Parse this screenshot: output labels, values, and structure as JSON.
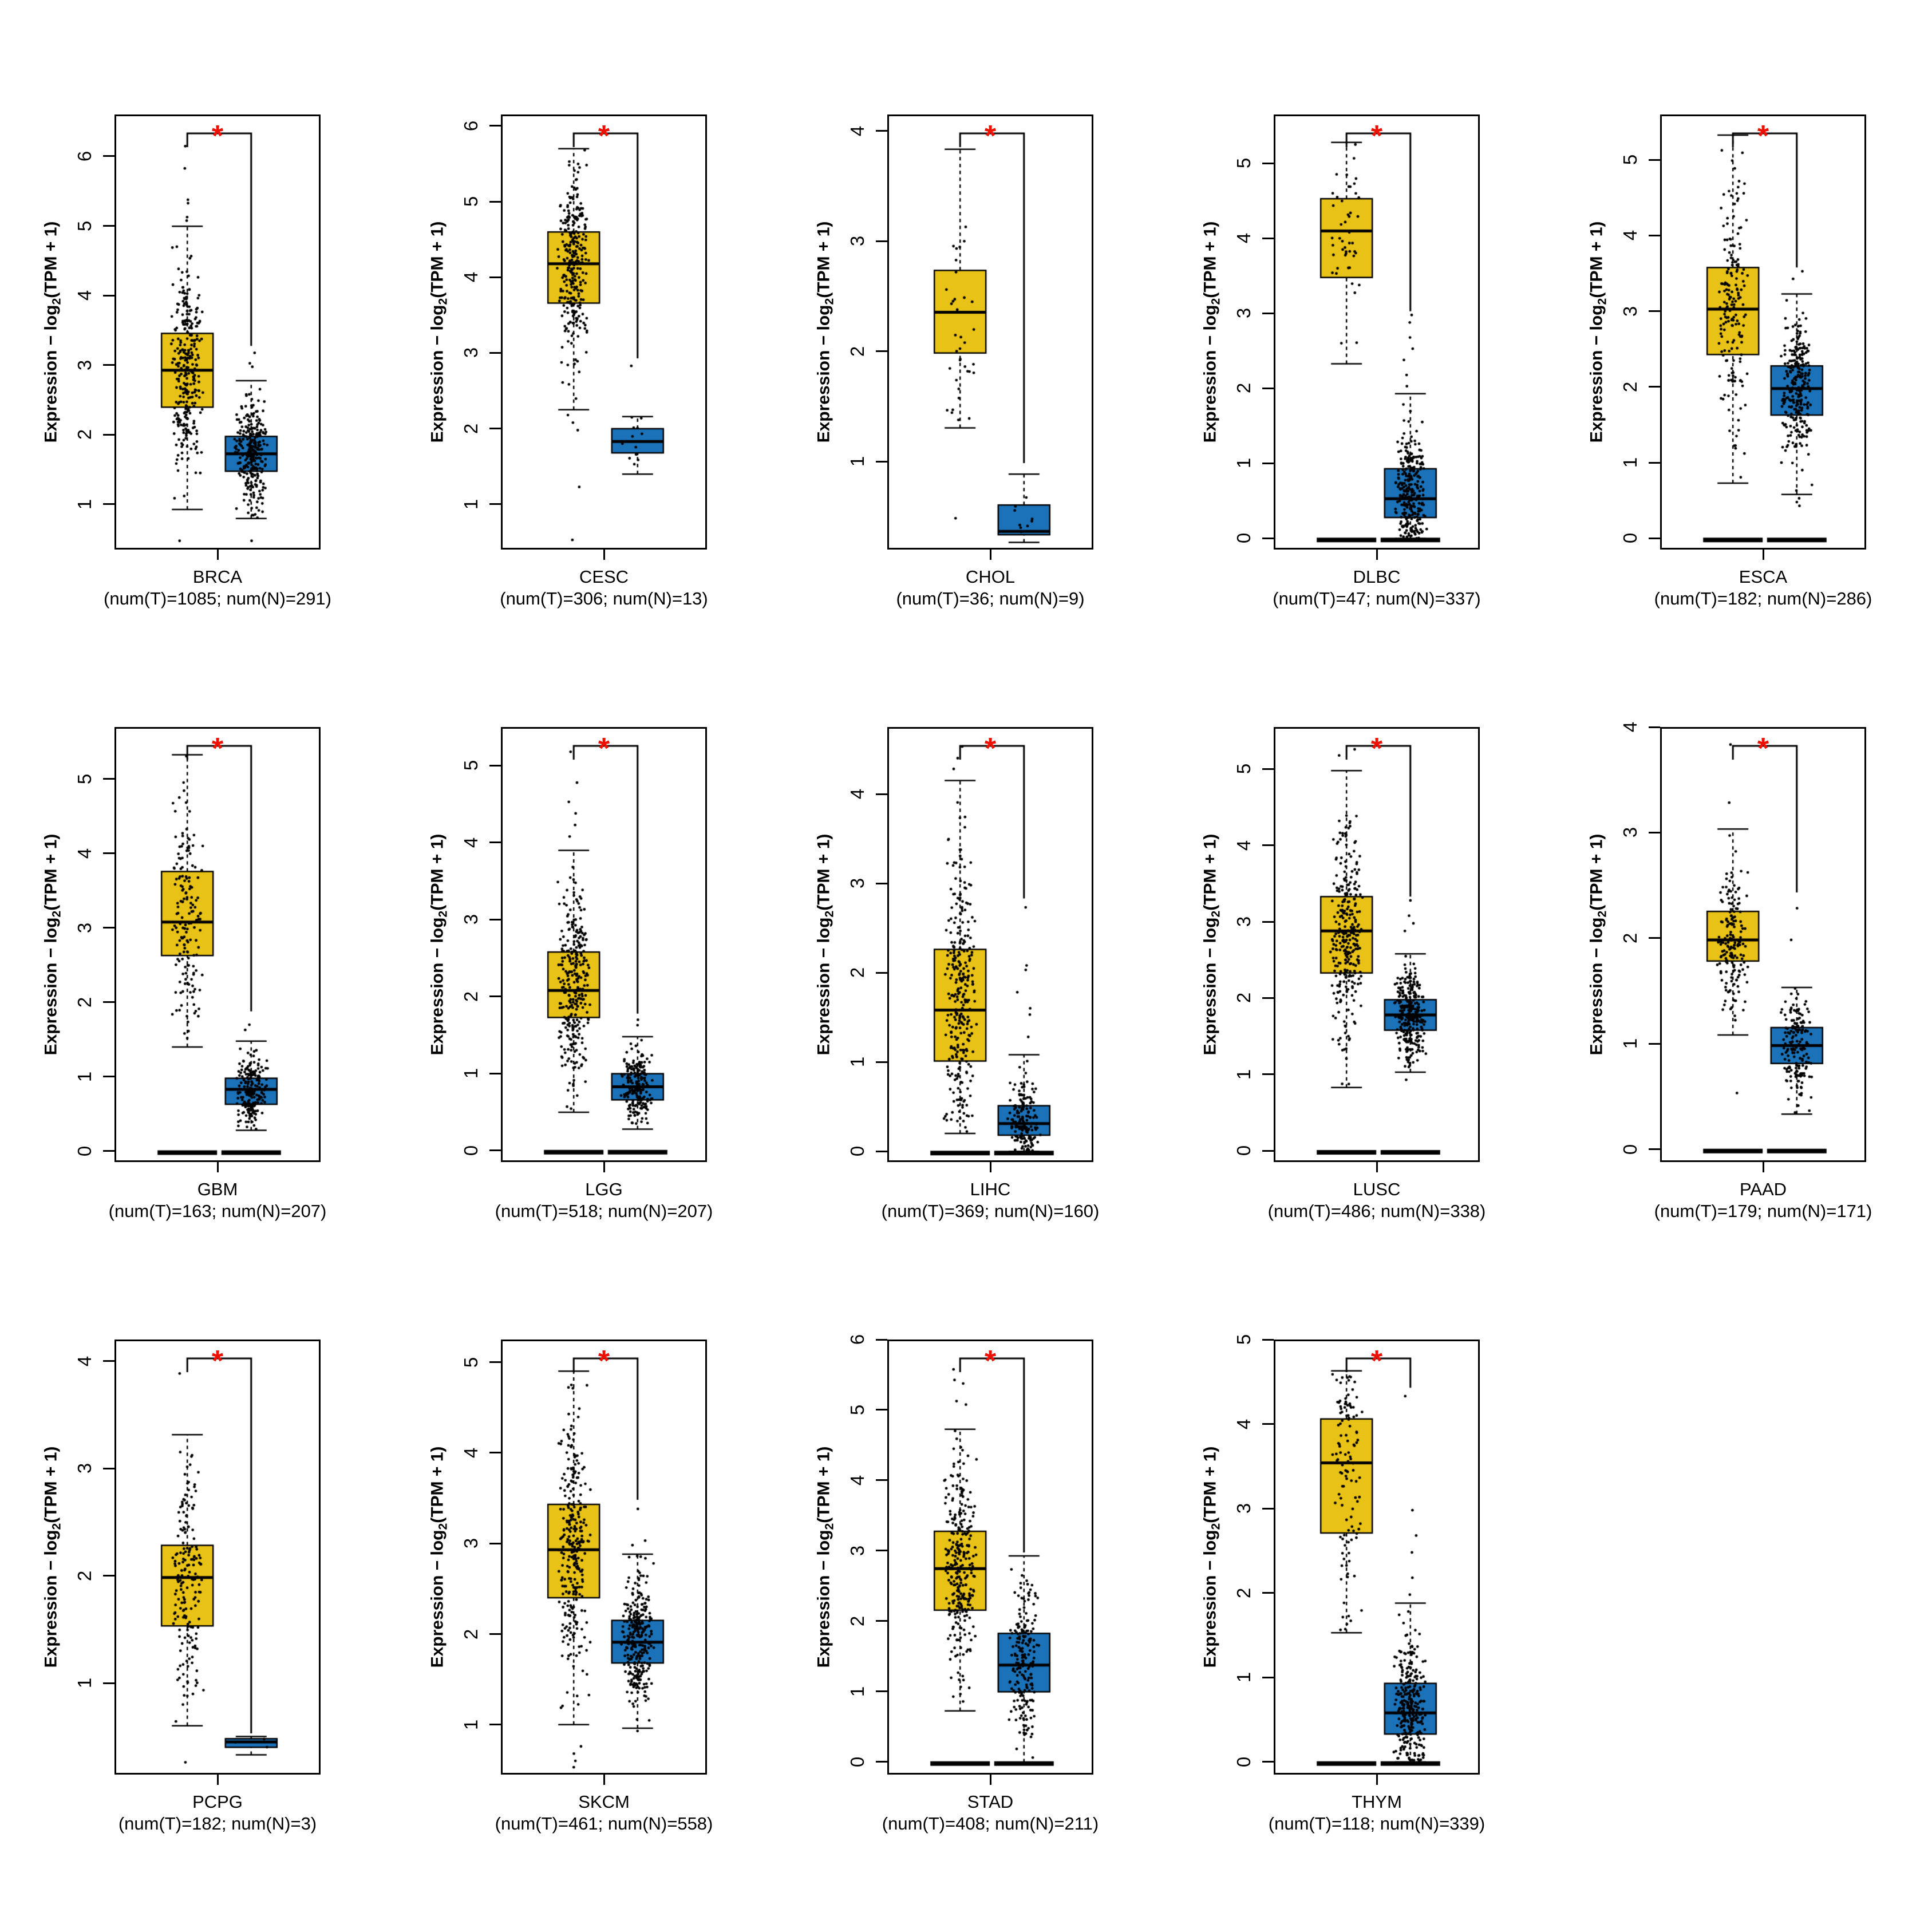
{
  "figure": {
    "y_axis_label": {
      "prefix": "Expression − log",
      "sub": "2",
      "suffix": "(TPM + 1)"
    },
    "significance_marker": "*",
    "colors": {
      "tumor_box": "#E9C217",
      "normal_box": "#1B72B8",
      "marker": "#EE1000",
      "points": "#000000"
    },
    "legend_note": "left box = tumor (gold), right box = normal (blue)"
  },
  "chart_data": [
    {
      "type": "box",
      "cancer": "BRCA",
      "caption": "(num(T)=1085; num(N)=291)",
      "num_t": 1085,
      "num_n": 291,
      "yticks": [
        1,
        2,
        3,
        4,
        5,
        6
      ],
      "ylim": [
        0.35,
        6.6
      ],
      "bracket_drop_to": 3.3,
      "tumor": {
        "q1": 2.42,
        "median": 2.95,
        "q3": 3.48,
        "whisker_low": 0.95,
        "whisker_high": 5.02,
        "outliers": [
          5.1,
          5.15,
          5.35,
          5.4,
          5.85,
          6.17,
          0.5
        ],
        "zero_line": false,
        "n": 1085
      },
      "normal": {
        "q1": 1.5,
        "median": 1.75,
        "q3": 2.0,
        "whisker_low": 0.82,
        "whisker_high": 2.8,
        "outliers": [
          3.0,
          3.05,
          3.2,
          0.5
        ],
        "zero_line": false,
        "n": 291
      }
    },
    {
      "type": "box",
      "cancer": "CESC",
      "caption": "(num(T)=306; num(N)=13)",
      "num_t": 306,
      "num_n": 13,
      "yticks": [
        1,
        2,
        3,
        4,
        5,
        6
      ],
      "ylim": [
        0.4,
        6.15
      ],
      "bracket_drop_to": 2.95,
      "tumor": {
        "q1": 3.68,
        "median": 4.2,
        "q3": 4.62,
        "whisker_low": 2.27,
        "whisker_high": 5.72,
        "outliers": [
          2.2,
          2.1,
          2.0,
          1.25,
          0.55
        ],
        "zero_line": false,
        "n": 306
      },
      "normal": {
        "q1": 1.7,
        "median": 1.85,
        "q3": 2.02,
        "whisker_low": 1.42,
        "whisker_high": 2.18,
        "outliers": [
          2.85
        ],
        "zero_line": false,
        "n": 13
      }
    },
    {
      "type": "box",
      "cancer": "CHOL",
      "caption": "(num(T)=36; num(N)=9)",
      "num_t": 36,
      "num_n": 9,
      "yticks": [
        1,
        2,
        3,
        4
      ],
      "ylim": [
        0.2,
        4.15
      ],
      "bracket_drop_to": 1.0,
      "tumor": {
        "q1": 2.0,
        "median": 2.37,
        "q3": 2.75,
        "whisker_low": 1.32,
        "whisker_high": 3.85,
        "outliers": [
          0.5
        ],
        "zero_line": false,
        "n": 36
      },
      "normal": {
        "q1": 0.35,
        "median": 0.38,
        "q3": 0.62,
        "whisker_low": 0.28,
        "whisker_high": 0.9,
        "outliers": [],
        "zero_line": false,
        "n": 9
      }
    },
    {
      "type": "box",
      "cancer": "DLBC",
      "caption": "(num(T)=47; num(N)=337)",
      "num_t": 47,
      "num_n": 337,
      "yticks": [
        0,
        1,
        2,
        3,
        4,
        5
      ],
      "ylim": [
        -0.15,
        5.65
      ],
      "bracket_drop_to": 3.05,
      "tumor": {
        "q1": 3.5,
        "median": 4.12,
        "q3": 4.55,
        "whisker_low": 2.35,
        "whisker_high": 5.3,
        "outliers": [],
        "zero_line": true,
        "n": 47
      },
      "normal": {
        "q1": 0.3,
        "median": 0.55,
        "q3": 0.95,
        "whisker_low": 0.02,
        "whisker_high": 1.95,
        "outliers": [
          2.05,
          2.2,
          2.4,
          2.55,
          2.7,
          2.9,
          3.0
        ],
        "zero_line": true,
        "n": 337
      }
    },
    {
      "type": "box",
      "cancer": "ESCA",
      "caption": "(num(T)=182; num(N)=286)",
      "num_t": 182,
      "num_n": 286,
      "yticks": [
        0,
        1,
        2,
        3,
        4,
        5
      ],
      "ylim": [
        -0.15,
        5.6
      ],
      "bracket_drop_to": 3.6,
      "tumor": {
        "q1": 2.45,
        "median": 3.05,
        "q3": 3.6,
        "whisker_low": 0.75,
        "whisker_high": 5.35,
        "outliers": [],
        "zero_line": true,
        "n": 182
      },
      "normal": {
        "q1": 1.65,
        "median": 2.0,
        "q3": 2.3,
        "whisker_low": 0.6,
        "whisker_high": 3.25,
        "outliers": [
          0.45,
          0.5,
          0.55,
          3.45,
          3.55
        ],
        "zero_line": true,
        "n": 286
      }
    },
    {
      "type": "box",
      "cancer": "GBM",
      "caption": "(num(T)=163; num(N)=207)",
      "num_t": 163,
      "num_n": 207,
      "yticks": [
        0,
        1,
        2,
        3,
        4,
        5
      ],
      "ylim": [
        -0.15,
        5.7
      ],
      "bracket_drop_to": 1.9,
      "tumor": {
        "q1": 2.65,
        "median": 3.1,
        "q3": 3.78,
        "whisker_low": 1.42,
        "whisker_high": 5.35,
        "outliers": [],
        "zero_line": true,
        "n": 163
      },
      "normal": {
        "q1": 0.65,
        "median": 0.85,
        "q3": 1.0,
        "whisker_low": 0.3,
        "whisker_high": 1.5,
        "outliers": [
          1.65,
          1.72
        ],
        "zero_line": true,
        "n": 207
      }
    },
    {
      "type": "box",
      "cancer": "LGG",
      "caption": "(num(T)=518; num(N)=207)",
      "num_t": 518,
      "num_n": 207,
      "yticks": [
        0,
        1,
        2,
        3,
        4,
        5
      ],
      "ylim": [
        -0.15,
        5.5
      ],
      "bracket_drop_to": 1.8,
      "tumor": {
        "q1": 1.75,
        "median": 2.1,
        "q3": 2.6,
        "whisker_low": 0.52,
        "whisker_high": 3.92,
        "outliers": [
          4.1,
          4.25,
          4.4,
          4.55,
          4.8,
          5.2
        ],
        "zero_line": true,
        "n": 518
      },
      "normal": {
        "q1": 0.68,
        "median": 0.85,
        "q3": 1.02,
        "whisker_low": 0.3,
        "whisker_high": 1.5,
        "outliers": [
          1.65,
          1.72
        ],
        "zero_line": true,
        "n": 207
      }
    },
    {
      "type": "box",
      "cancer": "LIHC",
      "caption": "(num(T)=369; num(N)=160)",
      "num_t": 369,
      "num_n": 160,
      "yticks": [
        0,
        1,
        2,
        3,
        4
      ],
      "ylim": [
        -0.12,
        4.75
      ],
      "bracket_drop_to": 2.85,
      "tumor": {
        "q1": 1.03,
        "median": 1.6,
        "q3": 2.28,
        "whisker_low": 0.22,
        "whisker_high": 4.17,
        "outliers": [
          4.3,
          4.42,
          4.55
        ],
        "zero_line": true,
        "n": 369
      },
      "normal": {
        "q1": 0.2,
        "median": 0.33,
        "q3": 0.53,
        "whisker_low": 0.02,
        "whisker_high": 1.1,
        "outliers": [
          1.3,
          1.55,
          1.62,
          1.8,
          2.05,
          2.1,
          2.75
        ],
        "zero_line": true,
        "n": 160
      }
    },
    {
      "type": "box",
      "cancer": "LUSC",
      "caption": "(num(T)=486; num(N)=338)",
      "num_t": 486,
      "num_n": 338,
      "yticks": [
        0,
        1,
        2,
        3,
        4,
        5
      ],
      "ylim": [
        -0.15,
        5.55
      ],
      "bracket_drop_to": 3.35,
      "tumor": {
        "q1": 2.35,
        "median": 2.9,
        "q3": 3.35,
        "whisker_low": 0.85,
        "whisker_high": 5.0,
        "outliers": [
          5.2,
          5.28
        ],
        "zero_line": true,
        "n": 486
      },
      "normal": {
        "q1": 1.6,
        "median": 1.8,
        "q3": 2.0,
        "whisker_low": 1.05,
        "whisker_high": 2.6,
        "outliers": [
          2.9,
          3.0,
          3.1,
          3.3,
          0.95
        ],
        "zero_line": true,
        "n": 338
      }
    },
    {
      "type": "box",
      "cancer": "PAAD",
      "caption": "(num(T)=179; num(N)=171)",
      "num_t": 179,
      "num_n": 171,
      "yticks": [
        0,
        1,
        2,
        3,
        4
      ],
      "ylim": [
        -0.12,
        4.0
      ],
      "bracket_drop_to": 2.45,
      "tumor": {
        "q1": 1.8,
        "median": 2.0,
        "q3": 2.27,
        "whisker_low": 1.1,
        "whisker_high": 3.05,
        "outliers": [
          3.3,
          3.85,
          0.55
        ],
        "zero_line": true,
        "n": 179
      },
      "normal": {
        "q1": 0.83,
        "median": 1.0,
        "q3": 1.17,
        "whisker_low": 0.35,
        "whisker_high": 1.55,
        "outliers": [
          2.0,
          2.3
        ],
        "zero_line": true,
        "n": 171
      }
    },
    {
      "type": "box",
      "cancer": "PCPG",
      "caption": "(num(T)=182; num(N)=3)",
      "num_t": 182,
      "num_n": 3,
      "yticks": [
        1,
        2,
        3,
        4
      ],
      "ylim": [
        0.15,
        4.2
      ],
      "bracket_drop_to": 0.55,
      "tumor": {
        "q1": 1.55,
        "median": 2.0,
        "q3": 2.3,
        "whisker_low": 0.62,
        "whisker_high": 3.33,
        "outliers": [
          3.9,
          0.28
        ],
        "zero_line": false,
        "n": 182
      },
      "normal": {
        "q1": 0.42,
        "median": 0.47,
        "q3": 0.5,
        "whisker_low": 0.35,
        "whisker_high": 0.52,
        "outliers": [],
        "zero_line": false,
        "n": 3
      }
    },
    {
      "type": "box",
      "cancer": "SKCM",
      "caption": "(num(T)=461; num(N)=558)",
      "num_t": 461,
      "num_n": 558,
      "yticks": [
        1,
        2,
        3,
        4,
        5
      ],
      "ylim": [
        0.45,
        5.25
      ],
      "bracket_drop_to": 3.5,
      "tumor": {
        "q1": 2.42,
        "median": 2.95,
        "q3": 3.45,
        "whisker_low": 1.02,
        "whisker_high": 4.92,
        "outliers": [
          0.55,
          0.62,
          0.7,
          0.78
        ],
        "zero_line": false,
        "n": 461
      },
      "normal": {
        "q1": 1.7,
        "median": 1.93,
        "q3": 2.17,
        "whisker_low": 0.98,
        "whisker_high": 2.9,
        "outliers": [
          3.0,
          3.05,
          3.4,
          0.95
        ],
        "zero_line": false,
        "n": 558
      }
    },
    {
      "type": "box",
      "cancer": "STAD",
      "caption": "(num(T)=408; num(N)=211)",
      "num_t": 408,
      "num_n": 211,
      "yticks": [
        0,
        1,
        2,
        3,
        4,
        5,
        6
      ],
      "ylim": [
        -0.18,
        6.0
      ],
      "bracket_drop_to": 3.0,
      "tumor": {
        "q1": 2.18,
        "median": 2.77,
        "q3": 3.3,
        "whisker_low": 0.75,
        "whisker_high": 4.75,
        "outliers": [
          5.1,
          5.15,
          5.4,
          5.45,
          5.6
        ],
        "zero_line": true,
        "n": 408
      },
      "normal": {
        "q1": 1.02,
        "median": 1.4,
        "q3": 1.85,
        "whisker_low": 0.02,
        "whisker_high": 2.95,
        "outliers": [],
        "zero_line": true,
        "n": 211
      }
    },
    {
      "type": "box",
      "cancer": "THYM",
      "caption": "(num(T)=118; num(N)=339)",
      "num_t": 118,
      "num_n": 339,
      "yticks": [
        0,
        1,
        2,
        3,
        4,
        5
      ],
      "ylim": [
        -0.15,
        5.0
      ],
      "bracket_drop_to": 4.45,
      "tumor": {
        "q1": 2.73,
        "median": 3.56,
        "q3": 4.08,
        "whisker_low": 1.55,
        "whisker_high": 4.65,
        "outliers": [],
        "zero_line": true,
        "n": 118
      },
      "normal": {
        "q1": 0.35,
        "median": 0.6,
        "q3": 0.95,
        "whisker_low": 0.02,
        "whisker_high": 1.9,
        "outliers": [
          2.0,
          2.2,
          2.5,
          2.7,
          3.0,
          4.35
        ],
        "zero_line": true,
        "n": 339
      }
    }
  ]
}
